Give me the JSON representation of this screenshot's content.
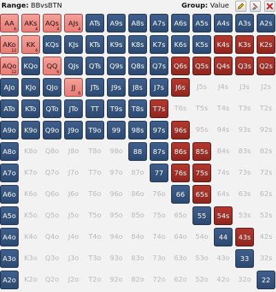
{
  "header": {
    "range_label": "Range:",
    "range_value": "BBvsBTN",
    "group_label": "Group:",
    "group_value": "Value"
  },
  "toolbar": {
    "edit": "pencil-icon",
    "clear": "eraser-icon",
    "close": "close-icon"
  },
  "colors": {
    "blue": "#2f4f7a",
    "pink": "#ee8b85",
    "red": "#9b2b22",
    "empty_text": "#b9b9b9"
  },
  "matrix": [
    [
      {
        "h": "AA",
        "s": "pink",
        "n": "6"
      },
      {
        "h": "AKs",
        "s": "pink",
        "n": "4"
      },
      {
        "h": "AQs",
        "s": "pink",
        "n": "4"
      },
      {
        "h": "AJs",
        "s": "pink",
        "n": "4"
      },
      {
        "h": "ATs",
        "s": "blue"
      },
      {
        "h": "A9s",
        "s": "blue"
      },
      {
        "h": "A8s",
        "s": "blue"
      },
      {
        "h": "A7s",
        "s": "blue"
      },
      {
        "h": "A6s",
        "s": "blue"
      },
      {
        "h": "A5s",
        "s": "blue"
      },
      {
        "h": "A4s",
        "s": "blue"
      },
      {
        "h": "A3s",
        "s": "blue"
      },
      {
        "h": "A2s",
        "s": "blue"
      }
    ],
    [
      {
        "h": "AKo",
        "s": "pink",
        "n": "12"
      },
      {
        "h": "KK",
        "s": "pink",
        "n": "6"
      },
      {
        "h": "KQs",
        "s": "blue"
      },
      {
        "h": "KJs",
        "s": "blue"
      },
      {
        "h": "KTs",
        "s": "blue"
      },
      {
        "h": "K9s",
        "s": "blue"
      },
      {
        "h": "K8s",
        "s": "blue"
      },
      {
        "h": "K7s",
        "s": "blue"
      },
      {
        "h": "K6s",
        "s": "blue"
      },
      {
        "h": "K5s",
        "s": "blue"
      },
      {
        "h": "K4s",
        "s": "red"
      },
      {
        "h": "K3s",
        "s": "red"
      },
      {
        "h": "K2s",
        "s": "red"
      }
    ],
    [
      {
        "h": "AQo",
        "s": "pink",
        "n": "12"
      },
      {
        "h": "KQo",
        "s": "blue"
      },
      {
        "h": "QQ",
        "s": "pink",
        "n": "6"
      },
      {
        "h": "QJs",
        "s": "blue"
      },
      {
        "h": "QTs",
        "s": "blue"
      },
      {
        "h": "Q9s",
        "s": "blue"
      },
      {
        "h": "Q8s",
        "s": "blue"
      },
      {
        "h": "Q7s",
        "s": "blue"
      },
      {
        "h": "Q6s",
        "s": "red"
      },
      {
        "h": "Q5s",
        "s": "red"
      },
      {
        "h": "Q4s",
        "s": "red"
      },
      {
        "h": "Q3s",
        "s": "red"
      },
      {
        "h": "Q2s",
        "s": "red"
      }
    ],
    [
      {
        "h": "AJo",
        "s": "blue"
      },
      {
        "h": "KJo",
        "s": "blue"
      },
      {
        "h": "QJo",
        "s": "blue"
      },
      {
        "h": "JJ",
        "s": "pink",
        "n": "6"
      },
      {
        "h": "JTs",
        "s": "blue"
      },
      {
        "h": "J9s",
        "s": "blue"
      },
      {
        "h": "J8s",
        "s": "blue"
      },
      {
        "h": "J7s",
        "s": "blue"
      },
      {
        "h": "J6s",
        "s": "red"
      },
      {
        "h": "J5s",
        "s": "empty"
      },
      {
        "h": "J4s",
        "s": "empty"
      },
      {
        "h": "J3s",
        "s": "empty"
      },
      {
        "h": "J2s",
        "s": "empty"
      }
    ],
    [
      {
        "h": "ATo",
        "s": "blue"
      },
      {
        "h": "KTo",
        "s": "blue"
      },
      {
        "h": "QTo",
        "s": "blue"
      },
      {
        "h": "JTo",
        "s": "blue"
      },
      {
        "h": "TT",
        "s": "blue"
      },
      {
        "h": "T9s",
        "s": "blue"
      },
      {
        "h": "T8s",
        "s": "blue"
      },
      {
        "h": "T7s",
        "s": "red"
      },
      {
        "h": "T6s",
        "s": "empty"
      },
      {
        "h": "T5s",
        "s": "empty"
      },
      {
        "h": "T4s",
        "s": "empty"
      },
      {
        "h": "T3s",
        "s": "empty"
      },
      {
        "h": "T2s",
        "s": "empty"
      }
    ],
    [
      {
        "h": "A9o",
        "s": "blue"
      },
      {
        "h": "K9o",
        "s": "blue"
      },
      {
        "h": "Q9o",
        "s": "blue"
      },
      {
        "h": "J9o",
        "s": "blue"
      },
      {
        "h": "T9o",
        "s": "blue"
      },
      {
        "h": "99",
        "s": "blue"
      },
      {
        "h": "98s",
        "s": "blue"
      },
      {
        "h": "97s",
        "s": "blue"
      },
      {
        "h": "96s",
        "s": "red"
      },
      {
        "h": "95s",
        "s": "empty"
      },
      {
        "h": "94s",
        "s": "empty"
      },
      {
        "h": "93s",
        "s": "empty"
      },
      {
        "h": "92s",
        "s": "empty"
      }
    ],
    [
      {
        "h": "A8o",
        "s": "blue"
      },
      {
        "h": "K8o",
        "s": "empty"
      },
      {
        "h": "Q8o",
        "s": "empty"
      },
      {
        "h": "J8o",
        "s": "empty"
      },
      {
        "h": "T8o",
        "s": "empty"
      },
      {
        "h": "98o",
        "s": "empty"
      },
      {
        "h": "88",
        "s": "blue"
      },
      {
        "h": "87s",
        "s": "blue"
      },
      {
        "h": "86s",
        "s": "red"
      },
      {
        "h": "85s",
        "s": "red"
      },
      {
        "h": "84s",
        "s": "empty"
      },
      {
        "h": "83s",
        "s": "empty"
      },
      {
        "h": "82s",
        "s": "empty"
      }
    ],
    [
      {
        "h": "A7o",
        "s": "blue"
      },
      {
        "h": "K7o",
        "s": "empty"
      },
      {
        "h": "Q7o",
        "s": "empty"
      },
      {
        "h": "J7o",
        "s": "empty"
      },
      {
        "h": "T7o",
        "s": "empty"
      },
      {
        "h": "97o",
        "s": "empty"
      },
      {
        "h": "87o",
        "s": "empty"
      },
      {
        "h": "77",
        "s": "blue"
      },
      {
        "h": "76s",
        "s": "red"
      },
      {
        "h": "75s",
        "s": "red"
      },
      {
        "h": "74s",
        "s": "empty"
      },
      {
        "h": "73s",
        "s": "empty"
      },
      {
        "h": "72s",
        "s": "empty"
      }
    ],
    [
      {
        "h": "A6o",
        "s": "blue"
      },
      {
        "h": "K6o",
        "s": "empty"
      },
      {
        "h": "Q6o",
        "s": "empty"
      },
      {
        "h": "J6o",
        "s": "empty"
      },
      {
        "h": "T6o",
        "s": "empty"
      },
      {
        "h": "96o",
        "s": "empty"
      },
      {
        "h": "86o",
        "s": "empty"
      },
      {
        "h": "76o",
        "s": "empty"
      },
      {
        "h": "66",
        "s": "blue"
      },
      {
        "h": "65s",
        "s": "red"
      },
      {
        "h": "64s",
        "s": "empty"
      },
      {
        "h": "63s",
        "s": "empty"
      },
      {
        "h": "62s",
        "s": "empty"
      }
    ],
    [
      {
        "h": "A5o",
        "s": "blue"
      },
      {
        "h": "K5o",
        "s": "empty"
      },
      {
        "h": "Q5o",
        "s": "empty"
      },
      {
        "h": "J5o",
        "s": "empty"
      },
      {
        "h": "T5o",
        "s": "empty"
      },
      {
        "h": "95o",
        "s": "empty"
      },
      {
        "h": "85o",
        "s": "empty"
      },
      {
        "h": "75o",
        "s": "empty"
      },
      {
        "h": "65o",
        "s": "empty"
      },
      {
        "h": "55",
        "s": "blue"
      },
      {
        "h": "54s",
        "s": "red"
      },
      {
        "h": "53s",
        "s": "empty"
      },
      {
        "h": "52s",
        "s": "empty"
      }
    ],
    [
      {
        "h": "A4o",
        "s": "blue"
      },
      {
        "h": "K4o",
        "s": "empty"
      },
      {
        "h": "Q4o",
        "s": "empty"
      },
      {
        "h": "J4o",
        "s": "empty"
      },
      {
        "h": "T4o",
        "s": "empty"
      },
      {
        "h": "94o",
        "s": "empty"
      },
      {
        "h": "84o",
        "s": "empty"
      },
      {
        "h": "74o",
        "s": "empty"
      },
      {
        "h": "64o",
        "s": "empty"
      },
      {
        "h": "54o",
        "s": "empty"
      },
      {
        "h": "44",
        "s": "blue"
      },
      {
        "h": "43s",
        "s": "red"
      },
      {
        "h": "42s",
        "s": "empty"
      }
    ],
    [
      {
        "h": "A3o",
        "s": "blue"
      },
      {
        "h": "K3o",
        "s": "empty"
      },
      {
        "h": "Q3o",
        "s": "empty"
      },
      {
        "h": "J3o",
        "s": "empty"
      },
      {
        "h": "T3o",
        "s": "empty"
      },
      {
        "h": "93o",
        "s": "empty"
      },
      {
        "h": "83o",
        "s": "empty"
      },
      {
        "h": "73o",
        "s": "empty"
      },
      {
        "h": "63o",
        "s": "empty"
      },
      {
        "h": "53o",
        "s": "empty"
      },
      {
        "h": "43o",
        "s": "empty"
      },
      {
        "h": "33",
        "s": "blue"
      },
      {
        "h": "32s",
        "s": "empty"
      }
    ],
    [
      {
        "h": "A2o",
        "s": "blue"
      },
      {
        "h": "K2o",
        "s": "empty"
      },
      {
        "h": "Q2o",
        "s": "empty"
      },
      {
        "h": "J2o",
        "s": "empty"
      },
      {
        "h": "T2o",
        "s": "empty"
      },
      {
        "h": "92o",
        "s": "empty"
      },
      {
        "h": "82o",
        "s": "empty"
      },
      {
        "h": "72o",
        "s": "empty"
      },
      {
        "h": "62o",
        "s": "empty"
      },
      {
        "h": "52o",
        "s": "empty"
      },
      {
        "h": "42o",
        "s": "empty"
      },
      {
        "h": "32o",
        "s": "empty"
      },
      {
        "h": "22",
        "s": "blue"
      }
    ]
  ]
}
